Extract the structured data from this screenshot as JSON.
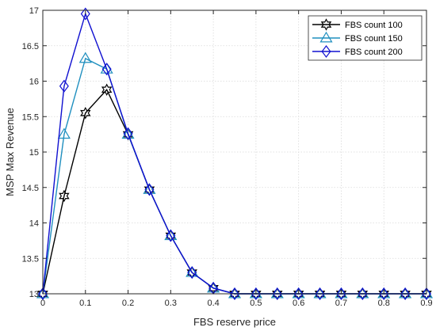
{
  "chart_data": {
    "type": "line",
    "xlabel": "FBS reserve price",
    "ylabel": "MSP Max Revenue",
    "xlim": [
      0,
      0.9
    ],
    "ylim": [
      13,
      17
    ],
    "xticks": [
      "0",
      "0.1",
      "0.2",
      "0.3",
      "0.4",
      "0.5",
      "0.6",
      "0.7",
      "0.8",
      "0.9"
    ],
    "yticks": [
      "13",
      "13.5",
      "14",
      "14.5",
      "15",
      "15.5",
      "16",
      "16.5",
      "17"
    ],
    "grid": true,
    "legend_position": "top-right",
    "x": [
      0,
      0.05,
      0.1,
      0.15,
      0.2,
      0.25,
      0.3,
      0.35,
      0.4,
      0.45,
      0.5,
      0.55,
      0.6,
      0.65,
      0.7,
      0.75,
      0.8,
      0.85,
      0.9
    ],
    "series": [
      {
        "name": "FBS count 100",
        "color": "#000000",
        "marker": "hexagram",
        "values": [
          13.0,
          14.38,
          15.55,
          15.88,
          15.25,
          14.47,
          13.82,
          13.3,
          13.08,
          13.0,
          13.0,
          13.0,
          13.0,
          13.0,
          13.0,
          13.0,
          13.0,
          13.0,
          13.0
        ]
      },
      {
        "name": "FBS count 150",
        "color": "#1f8fbf",
        "marker": "triangle",
        "values": [
          13.0,
          15.25,
          16.32,
          16.17,
          15.25,
          14.47,
          13.82,
          13.3,
          13.08,
          13.0,
          13.0,
          13.0,
          13.0,
          13.0,
          13.0,
          13.0,
          13.0,
          13.0,
          13.0
        ]
      },
      {
        "name": "FBS count 200",
        "color": "#1010d0",
        "marker": "diamond",
        "values": [
          13.0,
          15.93,
          16.95,
          16.17,
          15.26,
          14.47,
          13.82,
          13.3,
          13.08,
          13.0,
          13.0,
          13.0,
          13.0,
          13.0,
          13.0,
          13.0,
          13.0,
          13.0,
          13.0
        ]
      }
    ]
  }
}
